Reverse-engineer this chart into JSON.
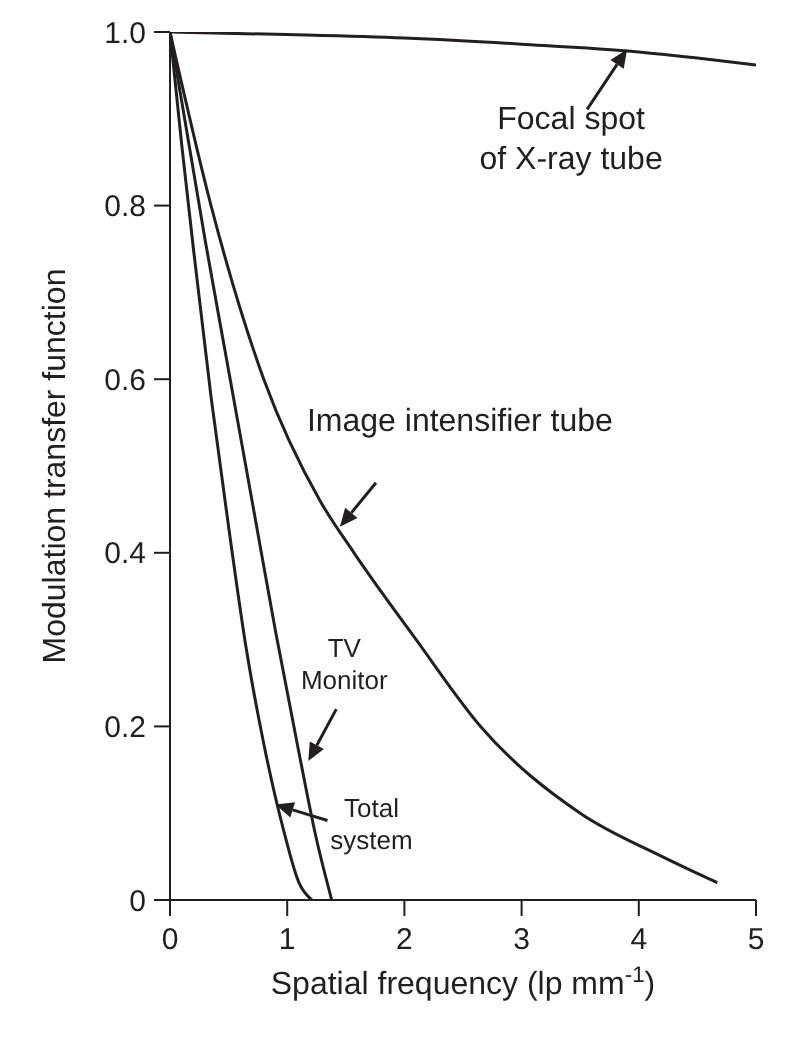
{
  "chart_data": {
    "type": "line",
    "xlabel": "Spatial frequency (lp mm$^{-1}$)",
    "ylabel": "Modulation transfer function",
    "xlim": [
      0,
      5
    ],
    "ylim": [
      0,
      1
    ],
    "xticks": [
      0,
      1,
      2,
      3,
      4,
      5
    ],
    "yticks": [
      0,
      0.2,
      0.4,
      0.6,
      {
        "value": 0.8,
        "label": "0.8"
      },
      {
        "value": 1,
        "label": "1.0"
      }
    ],
    "marker": "none",
    "line_style": "solid",
    "series": [
      {
        "color": "#231f20",
        "x": [
          0,
          1,
          2,
          3,
          4,
          4.5,
          5
        ],
        "values": [
          1,
          0.997,
          0.993,
          0.986,
          0.977,
          0.97,
          0.962
        ]
      },
      {
        "color": "#231f20",
        "x": [
          0,
          0.35,
          0.8,
          1.28,
          1.57,
          2.1,
          2.65,
          3.5,
          4.2,
          4.67
        ],
        "values": [
          1,
          0.8,
          0.6,
          0.46,
          0.4,
          0.3,
          0.2,
          0.1,
          0.05,
          0.02
        ]
      },
      {
        "color": "#231f20",
        "x": [
          0,
          0.3,
          0.5,
          0.7,
          0.9,
          1.1,
          1.25,
          1.38
        ],
        "values": [
          1,
          0.76,
          0.61,
          0.46,
          0.31,
          0.17,
          0.07,
          0
        ]
      },
      {
        "color": "#231f20",
        "x": [
          0,
          0.1,
          0.2,
          0.35,
          0.5,
          0.65,
          0.8,
          0.97,
          1.1,
          1.21
        ],
        "values": [
          1,
          0.87,
          0.75,
          0.58,
          0.43,
          0.29,
          0.18,
          0.08,
          0.02,
          0
        ]
      }
    ],
    "annotations": [
      {
        "text": "Focal spot\nof X-ray tube",
        "x": 3.9,
        "y": 0.98
      },
      {
        "text": "Image intensifier tube",
        "x": 1.45,
        "y": 0.43
      },
      {
        "text": "TV\nMonitor",
        "x": 1.18,
        "y": 0.16
      },
      {
        "text": "Total\nsystem",
        "x": 0.9,
        "y": 0.11
      }
    ]
  }
}
